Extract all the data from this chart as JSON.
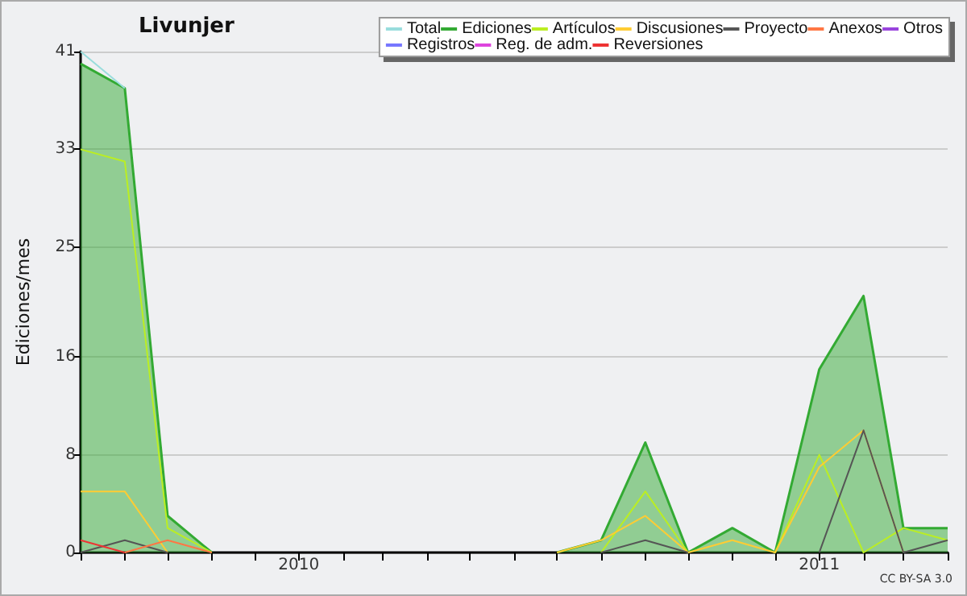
{
  "chart_data": {
    "type": "line",
    "title": "Livunjer",
    "ylabel": "Ediciones/mes",
    "x": [
      "2009-08",
      "2009-09",
      "2009-10",
      "2009-11",
      "2009-12",
      "2010-01",
      "2010-02",
      "2010-03",
      "2010-04",
      "2010-05",
      "2010-06",
      "2010-07",
      "2010-08",
      "2010-09",
      "2010-10",
      "2010-11",
      "2010-12",
      "2011-01",
      "2011-02",
      "2011-03",
      "2011-04"
    ],
    "series": [
      {
        "name": "Total",
        "color": "#99dddd",
        "values": [
          41,
          38,
          null,
          null,
          null,
          null,
          null,
          null,
          null,
          null,
          null,
          null,
          null,
          null,
          null,
          null,
          null,
          null,
          null,
          null,
          null
        ]
      },
      {
        "name": "Ediciones",
        "type": "area",
        "color": "#33aa33",
        "values": [
          40,
          38,
          3,
          0,
          null,
          null,
          null,
          null,
          null,
          null,
          null,
          0,
          1,
          9,
          0,
          2,
          0,
          15,
          21,
          2,
          2
        ]
      },
      {
        "name": "Artículos",
        "color": "#bbee22",
        "values": [
          33,
          32,
          2,
          0,
          null,
          null,
          null,
          null,
          null,
          null,
          null,
          null,
          0,
          5,
          0,
          null,
          0,
          8,
          0,
          2,
          1
        ]
      },
      {
        "name": "Discusiones",
        "color": "#ffcc33",
        "values": [
          5,
          5,
          0,
          null,
          null,
          null,
          null,
          null,
          null,
          null,
          null,
          0,
          1,
          3,
          0,
          1,
          0,
          7,
          10,
          0,
          null
        ]
      },
      {
        "name": "Proyecto",
        "color": "#555555",
        "values": [
          0,
          1,
          0,
          null,
          null,
          null,
          null,
          null,
          null,
          null,
          null,
          null,
          0,
          1,
          0,
          null,
          null,
          0,
          10,
          0,
          1
        ]
      },
      {
        "name": "Anexos",
        "color": "#ff7744",
        "values": [
          null,
          0,
          1,
          0,
          null,
          null,
          null,
          null,
          null,
          null,
          null,
          null,
          null,
          null,
          null,
          null,
          null,
          null,
          null,
          null,
          null
        ]
      },
      {
        "name": "Otros",
        "color": "#9944dd",
        "values": [
          null,
          null,
          null,
          null,
          null,
          null,
          null,
          null,
          null,
          null,
          null,
          null,
          null,
          null,
          null,
          null,
          null,
          null,
          null,
          null,
          null
        ]
      },
      {
        "name": "Registros",
        "color": "#7777ff",
        "values": [
          null,
          null,
          null,
          null,
          null,
          null,
          null,
          null,
          null,
          null,
          null,
          null,
          null,
          null,
          null,
          null,
          null,
          null,
          null,
          null,
          null
        ]
      },
      {
        "name": "Reg. de adm.",
        "color": "#dd44dd",
        "values": [
          null,
          null,
          null,
          null,
          null,
          null,
          null,
          null,
          null,
          null,
          null,
          null,
          null,
          null,
          null,
          null,
          null,
          null,
          null,
          null,
          null
        ]
      },
      {
        "name": "Reversiones",
        "color": "#ee3333",
        "values": [
          1,
          0,
          null,
          null,
          null,
          null,
          null,
          null,
          null,
          null,
          null,
          null,
          null,
          null,
          null,
          null,
          null,
          null,
          null,
          null,
          null
        ]
      }
    ],
    "xlim": [
      "2009-08",
      "2011-04"
    ],
    "xticks": [
      {
        "value": "2009-08",
        "label": null
      },
      {
        "value": "2009-09",
        "label": null
      },
      {
        "value": "2009-10",
        "label": null
      },
      {
        "value": "2009-11",
        "label": null
      },
      {
        "value": "2009-12",
        "label": null
      },
      {
        "value": "2010-01",
        "label": "2010"
      },
      {
        "value": "2010-02",
        "label": null
      },
      {
        "value": "2010-03",
        "label": null
      },
      {
        "value": "2010-04",
        "label": null
      },
      {
        "value": "2010-05",
        "label": null
      },
      {
        "value": "2010-06",
        "label": null
      },
      {
        "value": "2010-07",
        "label": null
      },
      {
        "value": "2010-08",
        "label": null
      },
      {
        "value": "2010-09",
        "label": null
      },
      {
        "value": "2010-10",
        "label": null
      },
      {
        "value": "2010-11",
        "label": null
      },
      {
        "value": "2010-12",
        "label": null
      },
      {
        "value": "2011-01",
        "label": "2011"
      },
      {
        "value": "2011-02",
        "label": null
      },
      {
        "value": "2011-03",
        "label": null
      },
      {
        "value": "2011-04",
        "label": null
      }
    ],
    "ylim": [
      0,
      41
    ],
    "yticks": [
      0,
      8,
      16,
      25,
      33,
      41
    ],
    "grid": "y",
    "legend": "top right",
    "marker": "none",
    "line_style": "solid",
    "annotations": [
      "CC BY-SA 3.0"
    ]
  }
}
